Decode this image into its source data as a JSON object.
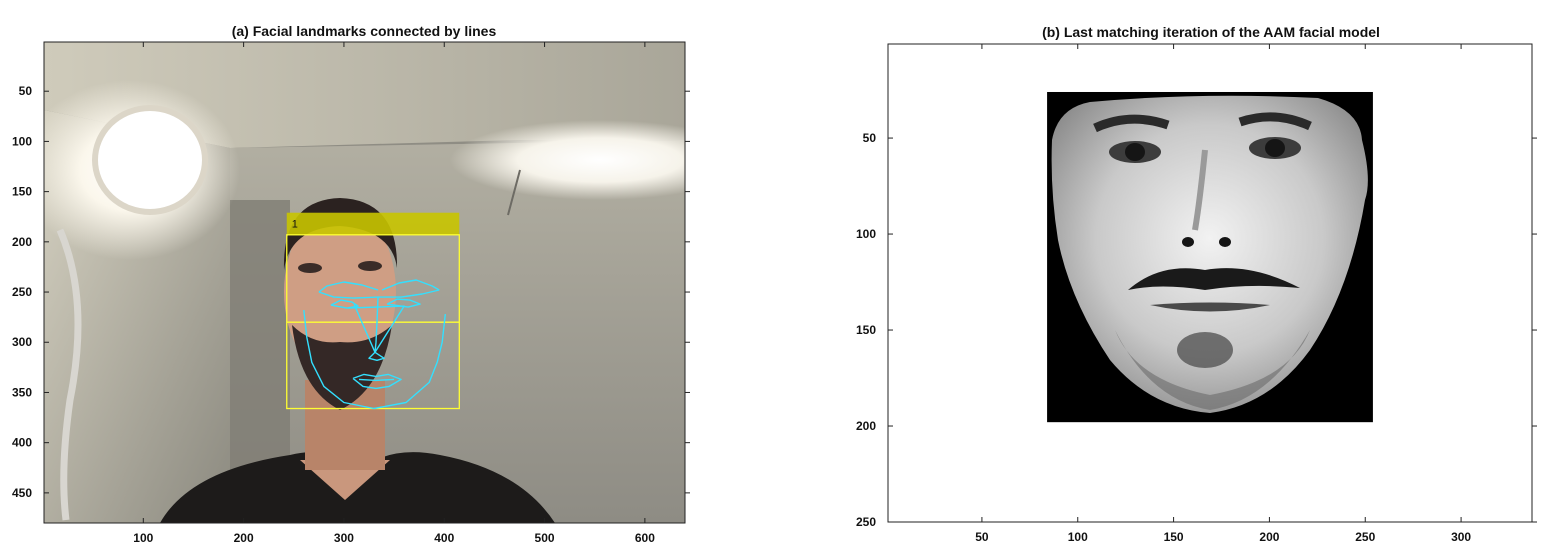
{
  "chart_data": [
    {
      "type": "image",
      "title": "(a) Facial landmarks connected by lines",
      "xlim": [
        1,
        640
      ],
      "ylim": [
        1,
        480
      ],
      "y_reversed": true,
      "xticks": [
        100,
        200,
        300,
        400,
        500,
        600
      ],
      "yticks": [
        50,
        100,
        150,
        200,
        250,
        300,
        350,
        400,
        450
      ],
      "image": "webcam photo of a bearded man in a dark v-neck shirt, lamp at upper left, ceiling light at upper right",
      "detection_box": {
        "label": "1",
        "x": [
          243,
          415
        ],
        "y": [
          193,
          366
        ],
        "label_band_y": [
          171,
          193
        ],
        "divider_y": 280,
        "color": "#ffff33",
        "band_color": "#c8c400"
      },
      "landmarks_color": "#33e0ff",
      "landmark_lines": [
        {
          "name": "jaw",
          "points": [
            [
              260,
              268
            ],
            [
              263,
              295
            ],
            [
              268,
              320
            ],
            [
              280,
              344
            ],
            [
              300,
              360
            ],
            [
              330,
              366
            ],
            [
              362,
              360
            ],
            [
              385,
              340
            ],
            [
              393,
              320
            ],
            [
              398,
              300
            ],
            [
              401,
              272
            ]
          ]
        },
        {
          "name": "brow-left",
          "points": [
            [
              275,
              250
            ],
            [
              283,
              244
            ],
            [
              300,
              240
            ],
            [
              318,
              243
            ],
            [
              334,
              248
            ]
          ]
        },
        {
          "name": "brow-right",
          "points": [
            [
              338,
              248
            ],
            [
              355,
              241
            ],
            [
              372,
              238
            ],
            [
              388,
              244
            ],
            [
              395,
              248
            ]
          ]
        },
        {
          "name": "brow-bridge",
          "points": [
            [
              275,
              250
            ],
            [
              290,
              255
            ],
            [
              310,
              256
            ],
            [
              334,
              255
            ],
            [
              357,
              255
            ],
            [
              378,
              252
            ],
            [
              395,
              248
            ]
          ]
        },
        {
          "name": "eye-left",
          "points": [
            [
              287,
              263
            ],
            [
              297,
              258
            ],
            [
              308,
              260
            ],
            [
              314,
              264
            ],
            [
              303,
              266
            ],
            [
              287,
              263
            ]
          ]
        },
        {
          "name": "eye-right",
          "points": [
            [
              343,
              262
            ],
            [
              353,
              257
            ],
            [
              366,
              258
            ],
            [
              376,
              262
            ],
            [
              364,
              265
            ],
            [
              343,
              262
            ]
          ]
        },
        {
          "name": "nose-bridge",
          "points": [
            [
              334,
              255
            ],
            [
              333,
              280
            ],
            [
              332,
              300
            ],
            [
              331,
              310
            ]
          ]
        },
        {
          "name": "nose-base",
          "points": [
            [
              310,
              262
            ],
            [
              331,
              310
            ],
            [
              325,
              316
            ],
            [
              333,
              318
            ],
            [
              340,
              316
            ],
            [
              331,
              310
            ]
          ]
        },
        {
          "name": "nose-cross",
          "points": [
            [
              304,
              266
            ],
            [
              360,
              264
            ],
            [
              331,
              310
            ]
          ]
        },
        {
          "name": "mouth-outer",
          "points": [
            [
              309,
              336
            ],
            [
              320,
              332
            ],
            [
              332,
              334
            ],
            [
              344,
              332
            ],
            [
              357,
              337
            ],
            [
              345,
              344
            ],
            [
              332,
              346
            ],
            [
              319,
              344
            ],
            [
              309,
              336
            ]
          ]
        },
        {
          "name": "mouth-inner",
          "points": [
            [
              315,
              337
            ],
            [
              332,
              338
            ],
            [
              350,
              337
            ]
          ]
        }
      ]
    },
    {
      "type": "image",
      "title": "(b) Last matching iteration of the AAM facial model",
      "xlim": [
        1,
        337
      ],
      "ylim": [
        1,
        250
      ],
      "y_reversed": true,
      "xticks": [
        50,
        100,
        150,
        200,
        250,
        300
      ],
      "yticks": [
        50,
        100,
        150,
        200,
        250
      ],
      "image": "grayscale warped face texture on black square",
      "texture_box": {
        "x": [
          84,
          254
        ],
        "y": [
          26,
          198
        ],
        "color": "#000000"
      }
    }
  ]
}
